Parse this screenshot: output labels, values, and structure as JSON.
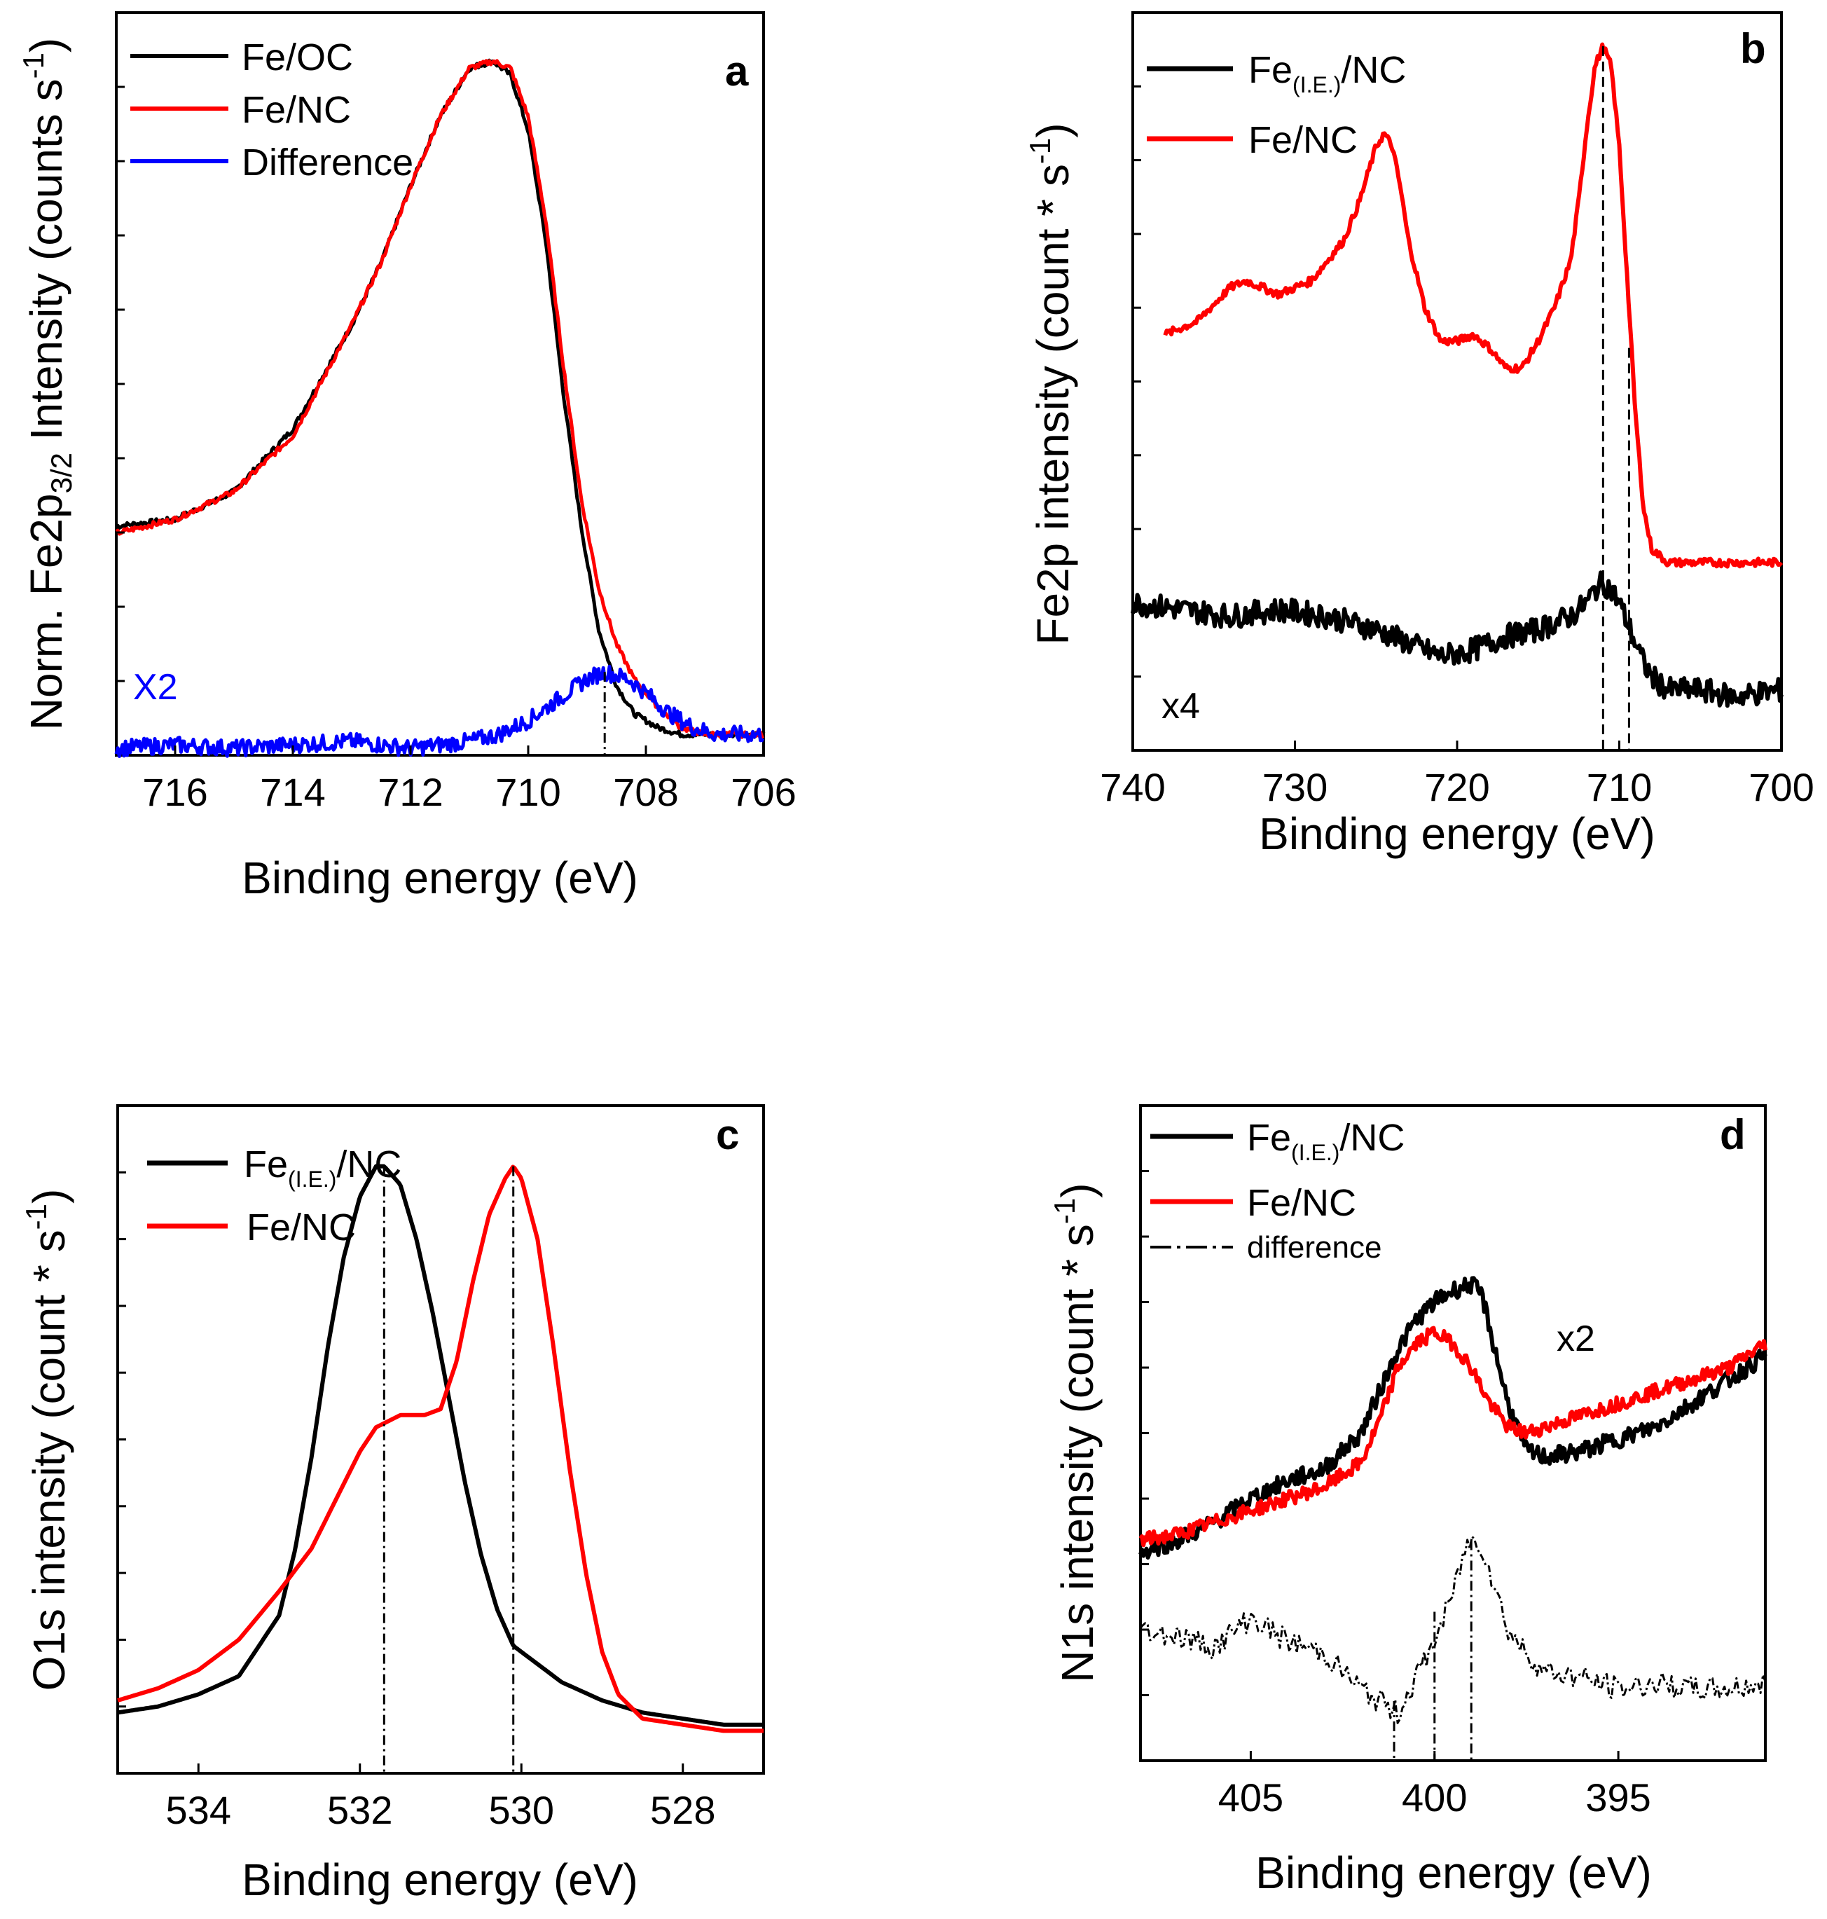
{
  "chart_data": [
    {
      "type": "line",
      "panel": "a",
      "xlabel": "Binding energy (eV)",
      "ylabel": "Norm. Fe2p3/2 Intensity (counts s-1)",
      "ylabel_parts": {
        "pre": "Norm. Fe2p",
        "sub": "3/2",
        "mid": " Intensity (counts s",
        "sup": "-1",
        "post": ")"
      },
      "xlim": [
        717,
        706
      ],
      "ylim": [
        0,
        1.07
      ],
      "xticks": [
        716,
        714,
        712,
        710,
        708,
        706
      ],
      "xtick_labels": [
        "716",
        "714",
        "712",
        "710",
        "708",
        "706"
      ],
      "legend": [
        "Fe/OC",
        "Fe/NC",
        "Difference"
      ],
      "annotation": "X2",
      "vlines": [
        708.7
      ],
      "series": [
        {
          "name": "Fe/OC",
          "color": "#000000",
          "x": [
            717,
            716,
            715,
            714,
            713,
            712.5,
            712,
            711.5,
            711,
            710.6,
            710.3,
            710,
            709.7,
            709.4,
            709.1,
            708.8,
            708.5,
            708.2,
            707.8,
            707.4,
            707,
            706.5,
            706
          ],
          "y": [
            0.33,
            0.34,
            0.38,
            0.47,
            0.62,
            0.71,
            0.82,
            0.92,
            0.99,
            1.0,
            0.98,
            0.9,
            0.74,
            0.52,
            0.33,
            0.18,
            0.1,
            0.06,
            0.04,
            0.03,
            0.03,
            0.03,
            0.03
          ]
        },
        {
          "name": "Fe/NC",
          "color": "#ff0000",
          "x": [
            717,
            716,
            715,
            714,
            713,
            712.5,
            712,
            711.5,
            711,
            710.6,
            710.3,
            710,
            709.7,
            709.4,
            709.1,
            708.8,
            708.5,
            708.2,
            707.8,
            707.4,
            707,
            706.5,
            706
          ],
          "y": [
            0.32,
            0.34,
            0.38,
            0.46,
            0.62,
            0.71,
            0.82,
            0.92,
            0.99,
            1.0,
            0.99,
            0.92,
            0.77,
            0.56,
            0.37,
            0.24,
            0.16,
            0.11,
            0.07,
            0.04,
            0.03,
            0.03,
            0.03
          ]
        },
        {
          "name": "Difference",
          "color": "#0000ff",
          "x": [
            717,
            716,
            715,
            714,
            713,
            712,
            711,
            710.5,
            710,
            709.5,
            709,
            708.7,
            708.3,
            708,
            707.6,
            707.2,
            706.8,
            706.4,
            706
          ],
          "y": [
            0.01,
            0.015,
            0.01,
            0.015,
            0.02,
            0.01,
            0.02,
            0.03,
            0.05,
            0.08,
            0.11,
            0.12,
            0.11,
            0.09,
            0.06,
            0.04,
            0.03,
            0.03,
            0.03
          ]
        }
      ]
    },
    {
      "type": "line",
      "panel": "b",
      "xlabel": "Binding energy (eV)",
      "ylabel": "Fe2p intensity (count * s-1)",
      "ylabel_parts": {
        "pre": "Fe2p intensity (count * s",
        "sup": "-1",
        "post": ")"
      },
      "xlim": [
        740,
        700
      ],
      "ylim": [
        0,
        1.1
      ],
      "xticks": [
        740,
        730,
        720,
        710,
        700
      ],
      "xtick_labels": [
        "740",
        "730",
        "720",
        "710",
        "700"
      ],
      "legend": [
        "Fe(I.E.)/NC",
        "Fe/NC"
      ],
      "legend_parts": [
        {
          "pre": "Fe",
          "sub": "(I.E.)",
          "post": "/NC"
        },
        {
          "pre": "Fe/NC",
          "sub": "",
          "post": ""
        }
      ],
      "annotation": "x4",
      "vlines": [
        711,
        709.4
      ],
      "series": [
        {
          "name": "Fe/NC",
          "color": "#ff0000",
          "x": [
            738,
            736,
            734,
            733,
            731,
            729,
            727,
            726,
            725,
            724.5,
            724,
            723.5,
            723,
            722,
            721,
            720,
            719,
            718,
            717,
            716,
            715,
            714,
            713,
            712.5,
            712,
            711.5,
            711,
            710.5,
            710,
            709.5,
            709,
            708.5,
            708,
            707,
            705,
            703,
            700
          ],
          "y": [
            0.62,
            0.64,
            0.69,
            0.7,
            0.68,
            0.7,
            0.76,
            0.82,
            0.9,
            0.92,
            0.9,
            0.84,
            0.76,
            0.66,
            0.61,
            0.61,
            0.62,
            0.6,
            0.57,
            0.57,
            0.61,
            0.66,
            0.73,
            0.82,
            0.93,
            1.02,
            1.05,
            1.02,
            0.9,
            0.7,
            0.5,
            0.36,
            0.3,
            0.28,
            0.28,
            0.28,
            0.28
          ]
        },
        {
          "name": "Fe(I.E.)/NC",
          "color": "#000000",
          "x": [
            740,
            737,
            734,
            731,
            728,
            725,
            723,
            721,
            719,
            717,
            715,
            713,
            712,
            711.5,
            711,
            710.5,
            710,
            709.5,
            709,
            708.5,
            708,
            707,
            705,
            703,
            700
          ],
          "y": [
            0.22,
            0.21,
            0.2,
            0.21,
            0.2,
            0.18,
            0.16,
            0.14,
            0.15,
            0.17,
            0.18,
            0.2,
            0.22,
            0.24,
            0.25,
            0.24,
            0.22,
            0.19,
            0.16,
            0.13,
            0.11,
            0.09,
            0.09,
            0.08,
            0.09
          ]
        }
      ]
    },
    {
      "type": "line",
      "panel": "c",
      "xlabel": "Binding energy (eV)",
      "ylabel": "O1s intensity (count * s-1)",
      "ylabel_parts": {
        "pre": "O1s intensity (count * s",
        "sup": "-1",
        "post": ")"
      },
      "xlim": [
        535,
        527
      ],
      "ylim": [
        0,
        1.1
      ],
      "xticks": [
        534,
        532,
        530,
        528
      ],
      "xtick_labels": [
        "534",
        "532",
        "530",
        "528"
      ],
      "legend": [
        "Fe(I.E.)/NC",
        "Fe/NC"
      ],
      "legend_parts": [
        {
          "pre": "Fe",
          "sub": "(I.E.)",
          "post": "/NC"
        },
        {
          "pre": "Fe/NC",
          "sub": "",
          "post": ""
        }
      ],
      "vlines": [
        531.7,
        530.1
      ],
      "series": [
        {
          "name": "Fe(I.E.)/NC",
          "color": "#000000",
          "x": [
            535,
            534.5,
            534,
            533.5,
            533,
            532.8,
            532.6,
            532.4,
            532.2,
            532,
            531.8,
            531.7,
            531.5,
            531.3,
            531.1,
            530.9,
            530.7,
            530.5,
            530.3,
            530.1,
            529.8,
            529.5,
            529,
            528.5,
            528,
            527.5,
            527
          ],
          "y": [
            0.1,
            0.11,
            0.13,
            0.16,
            0.26,
            0.37,
            0.52,
            0.7,
            0.85,
            0.95,
            1.0,
            1.0,
            0.97,
            0.88,
            0.76,
            0.62,
            0.48,
            0.36,
            0.27,
            0.21,
            0.18,
            0.15,
            0.12,
            0.1,
            0.09,
            0.08,
            0.08
          ]
        },
        {
          "name": "Fe/NC",
          "color": "#ff0000",
          "x": [
            535,
            534.5,
            534,
            533.5,
            533,
            532.6,
            532.3,
            532,
            531.8,
            531.5,
            531.2,
            531,
            530.8,
            530.6,
            530.4,
            530.2,
            530.1,
            530,
            529.8,
            529.6,
            529.4,
            529.2,
            529,
            528.8,
            528.5,
            528,
            527.5,
            527
          ],
          "y": [
            0.12,
            0.14,
            0.17,
            0.22,
            0.3,
            0.37,
            0.45,
            0.53,
            0.57,
            0.59,
            0.59,
            0.6,
            0.68,
            0.81,
            0.92,
            0.98,
            1.0,
            0.98,
            0.88,
            0.7,
            0.5,
            0.33,
            0.2,
            0.13,
            0.09,
            0.08,
            0.07,
            0.07
          ]
        }
      ]
    },
    {
      "type": "line",
      "panel": "d",
      "xlabel": "Binding energy (eV)",
      "ylabel": "N1s intensity (count * s-1)",
      "ylabel_parts": {
        "pre": "N1s intensity (count * s",
        "sup": "-1",
        "post": ")"
      },
      "xlim": [
        408,
        391
      ],
      "ylim": [
        0,
        1.1
      ],
      "xticks": [
        405,
        400,
        395
      ],
      "xtick_labels": [
        "405",
        "400",
        "395"
      ],
      "legend": [
        "Fe(I.E.)/NC",
        "Fe/NC",
        "difference"
      ],
      "legend_parts": [
        {
          "pre": "Fe",
          "sub": "(I.E.)",
          "post": "/NC"
        },
        {
          "pre": "Fe/NC",
          "sub": "",
          "post": ""
        },
        {
          "pre": "difference",
          "sub": "",
          "post": ""
        }
      ],
      "annotation": "x2",
      "vlines": [
        401.1,
        400.0,
        399.0
      ],
      "series": [
        {
          "name": "Fe(I.E.)/NC",
          "color": "#000000",
          "x": [
            408,
            407,
            406,
            405,
            404,
            403,
            402,
            401.5,
            401,
            400.5,
            400,
            399.5,
            399,
            398.7,
            398.4,
            398,
            397.5,
            397,
            396,
            395,
            394,
            393,
            392,
            391
          ],
          "y": [
            0.35,
            0.37,
            0.4,
            0.44,
            0.47,
            0.49,
            0.55,
            0.62,
            0.69,
            0.74,
            0.77,
            0.79,
            0.8,
            0.78,
            0.7,
            0.6,
            0.52,
            0.51,
            0.52,
            0.54,
            0.56,
            0.6,
            0.64,
            0.68
          ]
        },
        {
          "name": "Fe/NC",
          "color": "#ff0000",
          "x": [
            408,
            407,
            406,
            405,
            404,
            403,
            402,
            401.5,
            401,
            400.5,
            400,
            399.5,
            399,
            398.5,
            398,
            397.5,
            397,
            396,
            395,
            394,
            393,
            392,
            391
          ],
          "y": [
            0.37,
            0.38,
            0.4,
            0.42,
            0.44,
            0.46,
            0.5,
            0.57,
            0.66,
            0.7,
            0.72,
            0.7,
            0.66,
            0.6,
            0.56,
            0.55,
            0.56,
            0.58,
            0.6,
            0.62,
            0.64,
            0.66,
            0.7
          ]
        },
        {
          "name": "difference",
          "color": "#000000",
          "x": [
            408,
            407,
            406,
            405,
            404,
            403,
            402,
            401.5,
            401,
            400.5,
            400,
            399.5,
            399.2,
            399,
            398.7,
            398.4,
            398,
            397.5,
            397,
            396,
            395,
            394,
            393,
            392,
            391
          ],
          "y": [
            0.22,
            0.21,
            0.19,
            0.24,
            0.2,
            0.18,
            0.12,
            0.1,
            0.08,
            0.14,
            0.2,
            0.28,
            0.35,
            0.37,
            0.36,
            0.3,
            0.22,
            0.18,
            0.15,
            0.14,
            0.12,
            0.13,
            0.12,
            0.12,
            0.13
          ]
        }
      ]
    }
  ]
}
